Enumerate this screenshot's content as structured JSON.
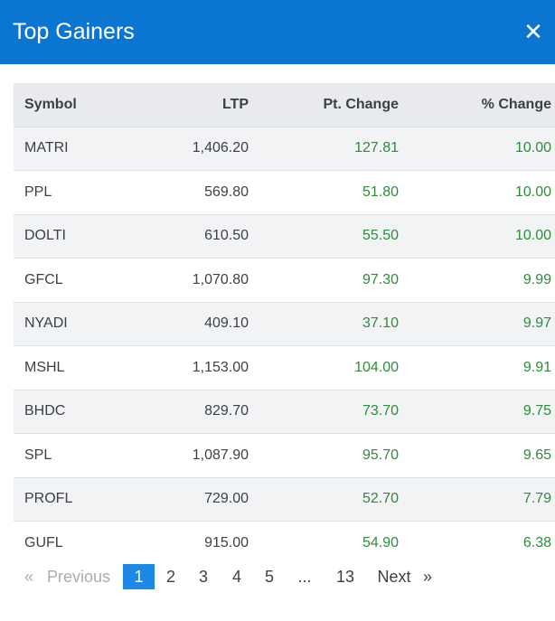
{
  "modal": {
    "title": "Top Gainers",
    "close_icon": "close-icon"
  },
  "table": {
    "headers": {
      "symbol": "Symbol",
      "ltp": "LTP",
      "pt_change": "Pt. Change",
      "pct_change": "% Change"
    },
    "rows": [
      {
        "symbol": "MATRI",
        "ltp": "1,406.20",
        "pt_change": "127.81",
        "pct_change": "10.00"
      },
      {
        "symbol": "PPL",
        "ltp": "569.80",
        "pt_change": "51.80",
        "pct_change": "10.00"
      },
      {
        "symbol": "DOLTI",
        "ltp": "610.50",
        "pt_change": "55.50",
        "pct_change": "10.00"
      },
      {
        "symbol": "GFCL",
        "ltp": "1,070.80",
        "pt_change": "97.30",
        "pct_change": "9.99"
      },
      {
        "symbol": "NYADI",
        "ltp": "409.10",
        "pt_change": "37.10",
        "pct_change": "9.97"
      },
      {
        "symbol": "MSHL",
        "ltp": "1,153.00",
        "pt_change": "104.00",
        "pct_change": "9.91"
      },
      {
        "symbol": "BHDC",
        "ltp": "829.70",
        "pt_change": "73.70",
        "pct_change": "9.75"
      },
      {
        "symbol": "SPL",
        "ltp": "1,087.90",
        "pt_change": "95.70",
        "pct_change": "9.65"
      },
      {
        "symbol": "PROFL",
        "ltp": "729.00",
        "pt_change": "52.70",
        "pct_change": "7.79"
      },
      {
        "symbol": "GUFL",
        "ltp": "915.00",
        "pt_change": "54.90",
        "pct_change": "6.38"
      }
    ]
  },
  "pagination": {
    "first_arrow": "«",
    "previous": "Previous",
    "pages": [
      "1",
      "2",
      "3",
      "4",
      "5"
    ],
    "ellipsis": "...",
    "last_page": "13",
    "next": "Next",
    "last_arrow": "»",
    "current_page": "1"
  },
  "colors": {
    "header_bg": "#0a76d1",
    "positive": "#2e8b3c",
    "active_page": "#1e88e5"
  }
}
